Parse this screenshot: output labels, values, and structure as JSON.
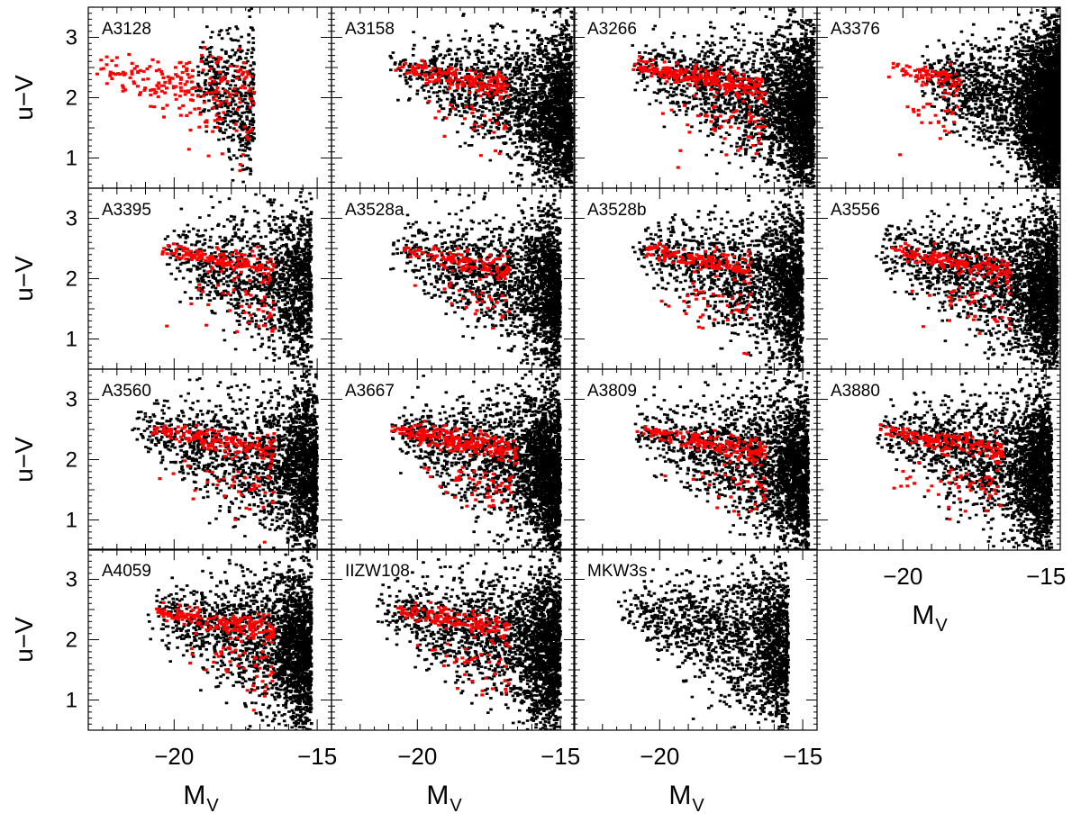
{
  "figure": {
    "shared_axes": {
      "xlabel_main": "M",
      "xlabel_sub": "V",
      "ylabel": "u−V",
      "xlim": [
        -23,
        -14.5
      ],
      "ylim": [
        0.5,
        3.5
      ],
      "xticks": [
        -20,
        -15
      ],
      "xtick_labels": [
        "−20",
        "−15"
      ],
      "yticks": [
        1,
        2,
        3
      ],
      "ytick_labels": [
        "1",
        "2",
        "3"
      ]
    },
    "colors": {
      "all_galaxies": "#000000",
      "selected_galaxies": "#ff0000",
      "frame": "#000000"
    }
  },
  "chart_data": [
    {
      "type": "scatter",
      "title": "A3128",
      "row": 0,
      "col": 0,
      "black_n": 450,
      "red_n": 230,
      "black_bright": -19.5,
      "black_faint": -17.2,
      "red_bright": -22.8,
      "red_faint": -17.2,
      "red_mode": "wide",
      "dense": 0.0
    },
    {
      "type": "scatter",
      "title": "A3158",
      "row": 0,
      "col": 1,
      "black_n": 2600,
      "red_n": 200,
      "black_bright": -21.0,
      "black_faint": -14.6,
      "red_bright": -20.8,
      "red_faint": -16.8,
      "red_mode": "seq",
      "dense": 0.45
    },
    {
      "type": "scatter",
      "title": "A3266",
      "row": 0,
      "col": 2,
      "black_n": 2800,
      "red_n": 320,
      "black_bright": -21.0,
      "black_faint": -14.6,
      "red_bright": -21.0,
      "red_faint": -16.3,
      "red_mode": "seq",
      "dense": 0.45
    },
    {
      "type": "scatter",
      "title": "A3376",
      "row": 0,
      "col": 3,
      "black_n": 4200,
      "red_n": 110,
      "black_bright": -19.5,
      "black_faint": -14.5,
      "red_bright": -20.5,
      "red_faint": -18.0,
      "red_mode": "seq",
      "dense": 0.65
    },
    {
      "type": "scatter",
      "title": "A3395",
      "row": 1,
      "col": 0,
      "black_n": 1500,
      "red_n": 180,
      "black_bright": -20.5,
      "black_faint": -15.2,
      "red_bright": -20.5,
      "red_faint": -16.5,
      "red_mode": "seq",
      "dense": 0.3
    },
    {
      "type": "scatter",
      "title": "A3528a",
      "row": 1,
      "col": 1,
      "black_n": 2000,
      "red_n": 150,
      "black_bright": -21.0,
      "black_faint": -15.0,
      "red_bright": -20.5,
      "red_faint": -16.8,
      "red_mode": "seq",
      "dense": 0.4
    },
    {
      "type": "scatter",
      "title": "A3528b",
      "row": 1,
      "col": 2,
      "black_n": 2000,
      "red_n": 180,
      "black_bright": -21.0,
      "black_faint": -15.0,
      "red_bright": -20.5,
      "red_faint": -16.8,
      "red_mode": "seq",
      "dense": 0.4
    },
    {
      "type": "scatter",
      "title": "A3556",
      "row": 1,
      "col": 3,
      "black_n": 2600,
      "red_n": 210,
      "black_bright": -21.0,
      "black_faint": -14.6,
      "red_bright": -20.5,
      "red_faint": -16.2,
      "red_mode": "seq",
      "dense": 0.45
    },
    {
      "type": "scatter",
      "title": "A3560",
      "row": 2,
      "col": 0,
      "black_n": 2200,
      "red_n": 210,
      "black_bright": -21.5,
      "black_faint": -15.0,
      "red_bright": -21.0,
      "red_faint": -16.5,
      "red_mode": "seq",
      "dense": 0.4
    },
    {
      "type": "scatter",
      "title": "A3667",
      "row": 2,
      "col": 1,
      "black_n": 2600,
      "red_n": 300,
      "black_bright": -21.0,
      "black_faint": -15.0,
      "red_bright": -21.0,
      "red_faint": -16.5,
      "red_mode": "seq",
      "dense": 0.45
    },
    {
      "type": "scatter",
      "title": "A3809",
      "row": 2,
      "col": 2,
      "black_n": 2400,
      "red_n": 210,
      "black_bright": -21.0,
      "black_faint": -14.8,
      "red_bright": -20.8,
      "red_faint": -16.3,
      "red_mode": "seq",
      "dense": 0.4
    },
    {
      "type": "scatter",
      "title": "A3880",
      "row": 2,
      "col": 3,
      "black_n": 2400,
      "red_n": 220,
      "black_bright": -21.0,
      "black_faint": -14.8,
      "red_bright": -20.8,
      "red_faint": -16.5,
      "red_mode": "seq",
      "dense": 0.4
    },
    {
      "type": "scatter",
      "title": "A4059",
      "row": 3,
      "col": 0,
      "black_n": 2200,
      "red_n": 230,
      "black_bright": -21.0,
      "black_faint": -15.2,
      "red_bright": -20.8,
      "red_faint": -16.5,
      "red_mode": "seq",
      "dense": 0.45
    },
    {
      "type": "scatter",
      "title": "IIZW108",
      "row": 3,
      "col": 1,
      "black_n": 2400,
      "red_n": 190,
      "black_bright": -21.5,
      "black_faint": -15.0,
      "red_bright": -20.8,
      "red_faint": -16.8,
      "red_mode": "seq",
      "dense": 0.4
    },
    {
      "type": "scatter",
      "title": "MKW3s",
      "row": 3,
      "col": 2,
      "black_n": 1800,
      "red_n": 0,
      "black_bright": -21.5,
      "black_faint": -15.5,
      "red_bright": -20.0,
      "red_faint": -17.0,
      "red_mode": "seq",
      "dense": 0.3
    }
  ],
  "xaxis_label_panels": [
    {
      "row": 3,
      "col": 0
    },
    {
      "row": 3,
      "col": 1
    },
    {
      "row": 3,
      "col": 2
    },
    {
      "row": 2,
      "col": 3
    }
  ]
}
